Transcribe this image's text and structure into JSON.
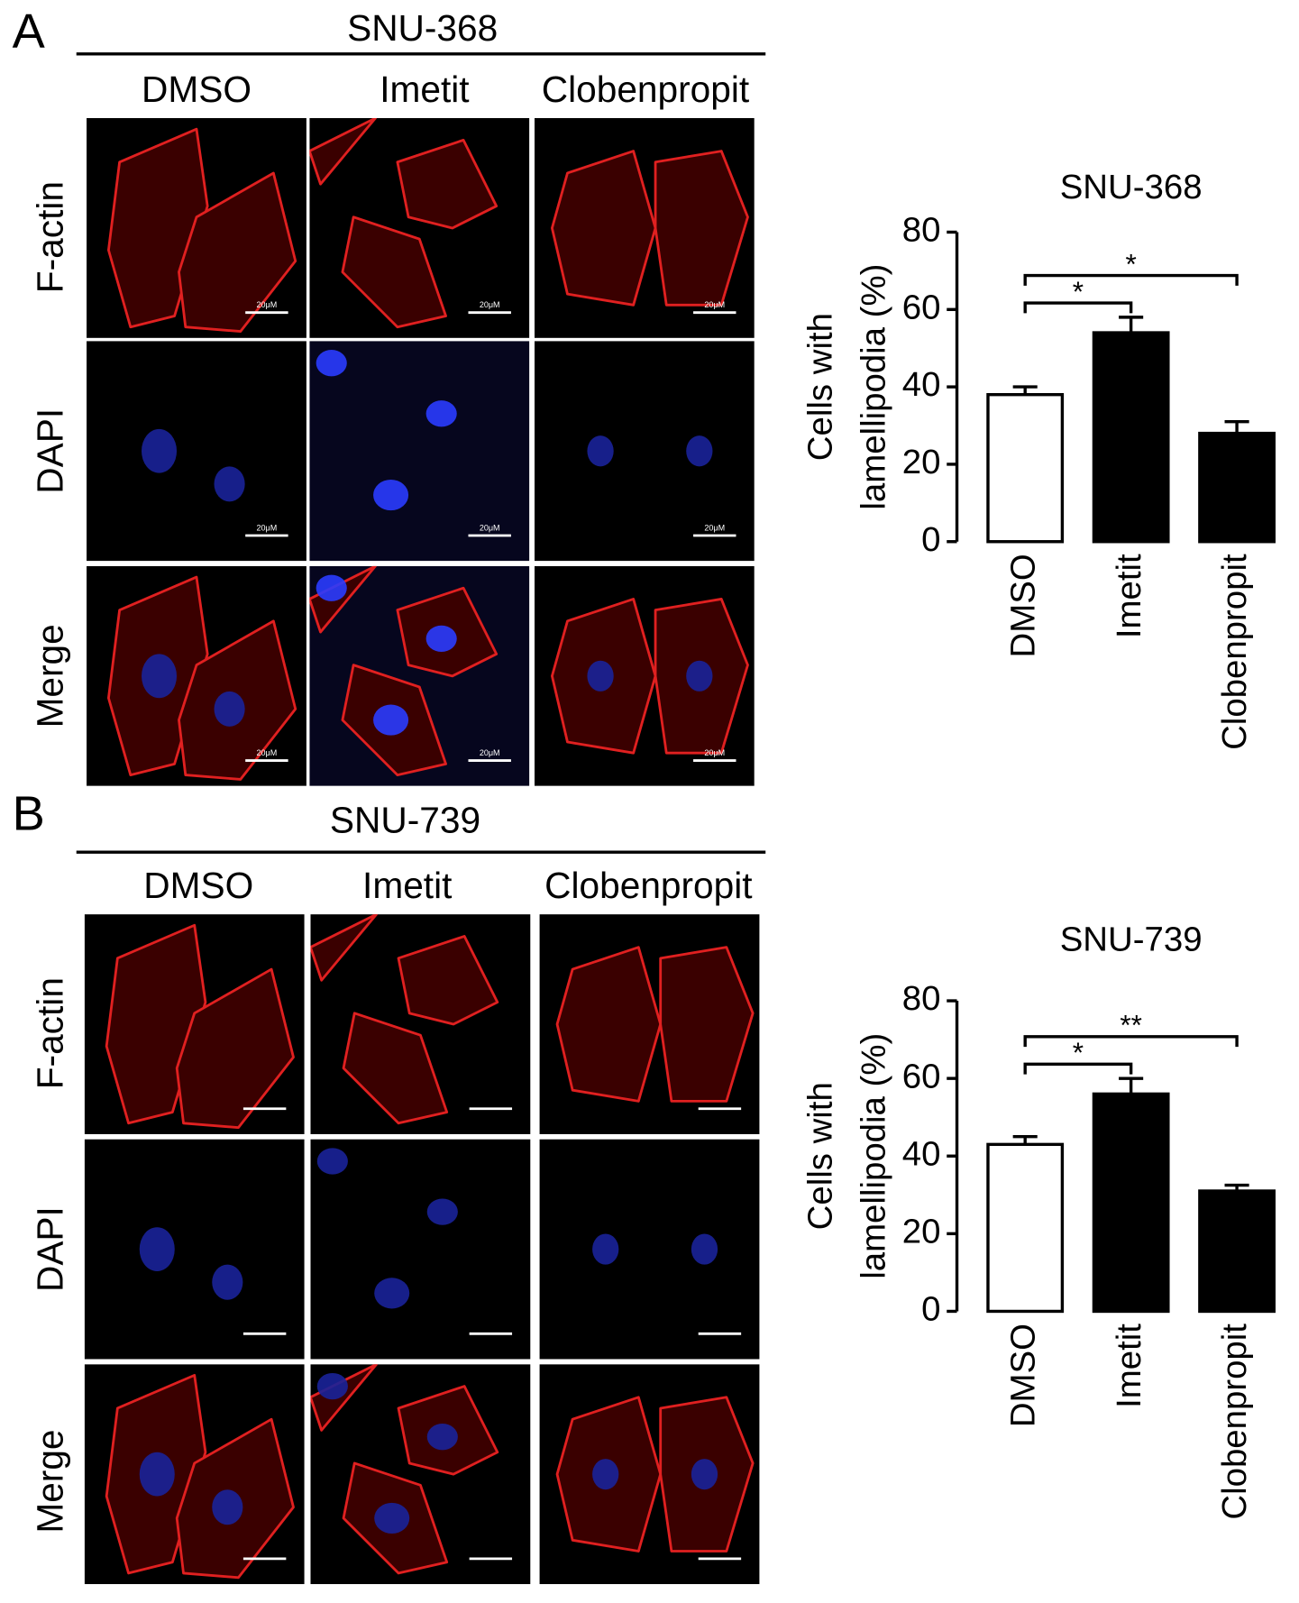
{
  "panels": [
    {
      "letter": "A",
      "cell_line": "SNU-368",
      "columns": [
        "DMSO",
        "Imetit",
        "Clobenpropit"
      ],
      "rows": [
        "F-actin",
        "DAPI",
        "Merge"
      ],
      "scale_bar": "20μM"
    },
    {
      "letter": "B",
      "cell_line": "SNU-739",
      "columns": [
        "DMSO",
        "Imetit",
        "Clobenpropit"
      ],
      "rows": [
        "F-actin",
        "DAPI",
        "Merge"
      ]
    }
  ],
  "chart_data": [
    {
      "type": "bar",
      "title": "SNU-368",
      "y_label": [
        "Cells with",
        "lamellipodia (%)"
      ],
      "categories": [
        "DMSO",
        "Imetit",
        "Clobenpropit"
      ],
      "values": [
        38,
        54,
        28
      ],
      "errors": [
        2,
        4,
        3
      ],
      "colors": [
        "#ffffff",
        "#000000",
        "#000000"
      ],
      "ylim": [
        0,
        80
      ],
      "yticks": [
        0,
        20,
        40,
        60,
        80
      ],
      "annotations": [
        {
          "from": 0,
          "to": 1,
          "label": "*"
        },
        {
          "from": 0,
          "to": 2,
          "label": "*"
        }
      ]
    },
    {
      "type": "bar",
      "title": "SNU-739",
      "y_label": [
        "Cells with",
        "lamellipodia (%)"
      ],
      "categories": [
        "DMSO",
        "Imetit",
        "Clobenpropit"
      ],
      "values": [
        43,
        56,
        31
      ],
      "errors": [
        2,
        4,
        1.5
      ],
      "colors": [
        "#ffffff",
        "#000000",
        "#000000"
      ],
      "ylim": [
        0,
        80
      ],
      "yticks": [
        0,
        20,
        40,
        60,
        80
      ],
      "annotations": [
        {
          "from": 0,
          "to": 1,
          "label": "*"
        },
        {
          "from": 0,
          "to": 2,
          "label": "**"
        }
      ]
    }
  ]
}
